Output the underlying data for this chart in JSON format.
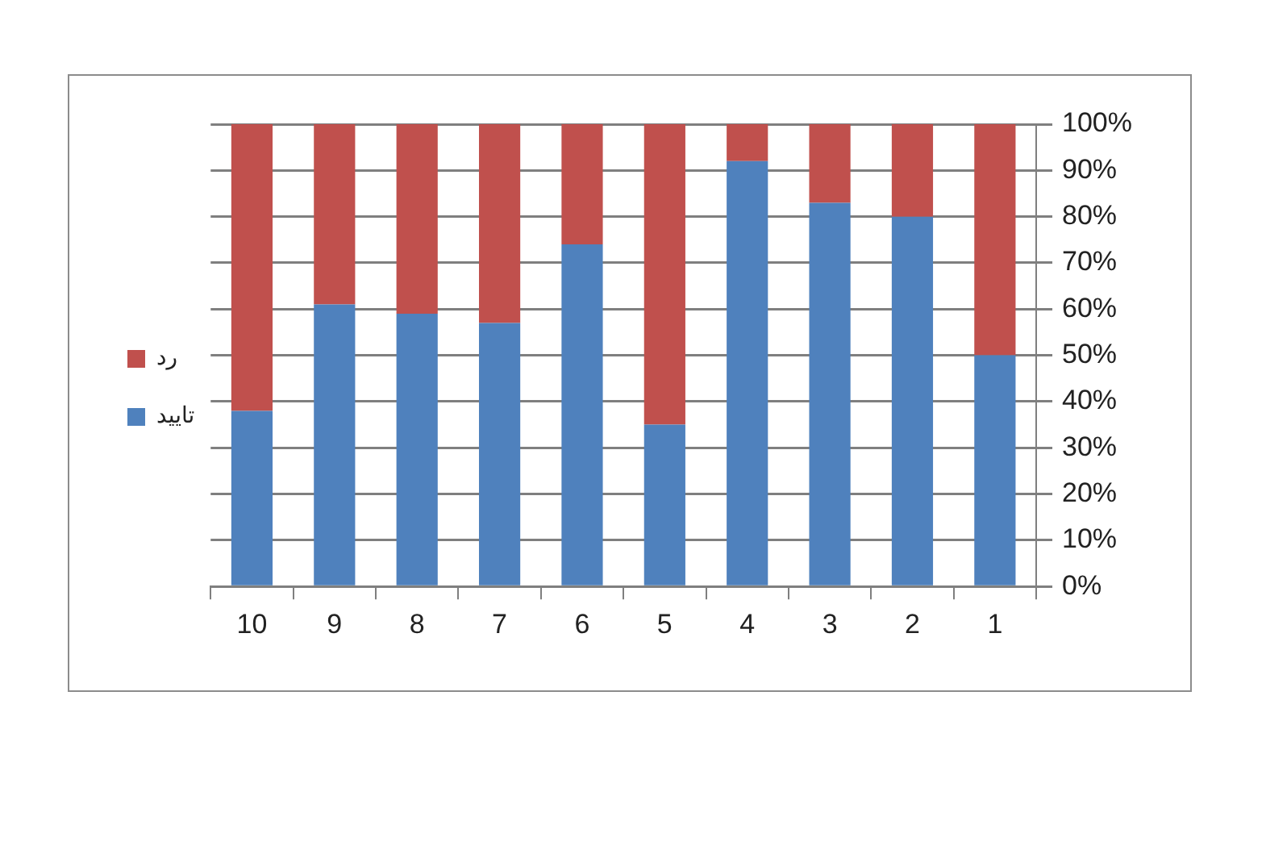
{
  "chart_data": {
    "type": "bar",
    "categories": [
      "10",
      "9",
      "8",
      "7",
      "6",
      "5",
      "4",
      "3",
      "2",
      "1"
    ],
    "series": [
      {
        "name": "تایید",
        "color": "#4f81bd",
        "values": [
          38,
          61,
          59,
          57,
          74,
          35,
          92,
          83,
          80,
          50
        ]
      },
      {
        "name": "رد",
        "color": "#c0504d",
        "values": [
          62,
          39,
          41,
          43,
          26,
          65,
          8,
          17,
          20,
          50
        ]
      }
    ],
    "stacked": true,
    "ylim": [
      0,
      100
    ],
    "yticks": [
      {
        "value": 0,
        "label": "0%"
      },
      {
        "value": 10,
        "label": "10%"
      },
      {
        "value": 20,
        "label": "20%"
      },
      {
        "value": 30,
        "label": "30%"
      },
      {
        "value": 40,
        "label": "40%"
      },
      {
        "value": 50,
        "label": "50%"
      },
      {
        "value": 60,
        "label": "60%"
      },
      {
        "value": 70,
        "label": "70%"
      },
      {
        "value": 80,
        "label": "80%"
      },
      {
        "value": 90,
        "label": "90%"
      },
      {
        "value": 100,
        "label": "100%"
      }
    ],
    "grid": "y",
    "legend": "left"
  }
}
